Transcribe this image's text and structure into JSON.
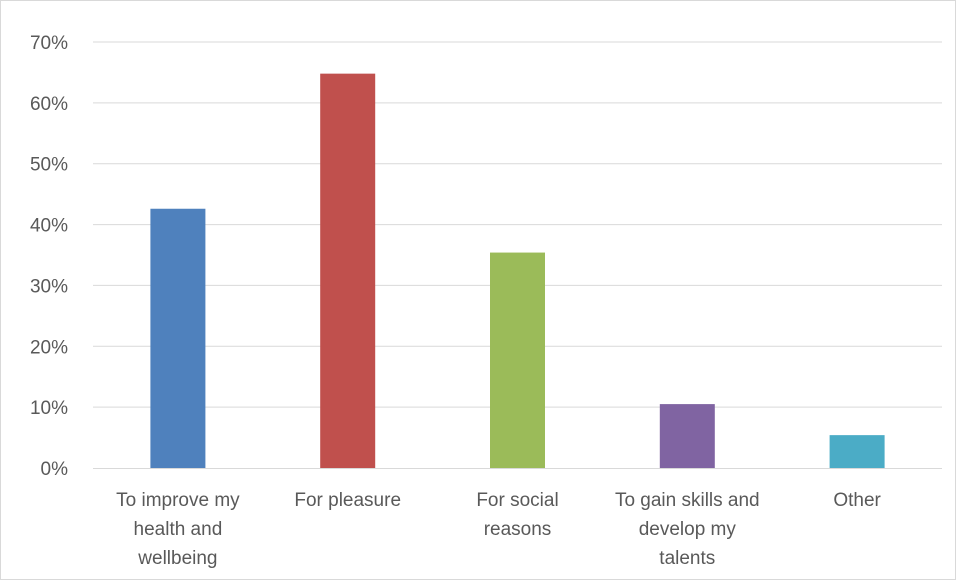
{
  "chart_data": {
    "type": "bar",
    "title": "",
    "xlabel": "",
    "ylabel": "",
    "categories": [
      [
        "To improve my",
        "health and",
        "wellbeing"
      ],
      [
        "For pleasure"
      ],
      [
        "For social",
        "reasons"
      ],
      [
        "To gain skills and",
        "develop my",
        "talents"
      ],
      [
        "Other"
      ]
    ],
    "values": [
      42.6,
      64.8,
      35.4,
      10.5,
      5.4
    ],
    "colors": [
      "#4f81bd",
      "#c0504d",
      "#9bbb59",
      "#8064a2",
      "#4bacc6"
    ],
    "y_ticks": [
      "0%",
      "10%",
      "20%",
      "30%",
      "40%",
      "50%",
      "60%",
      "70%"
    ],
    "ylim": [
      0,
      70
    ],
    "grid": true,
    "legend": "none"
  }
}
